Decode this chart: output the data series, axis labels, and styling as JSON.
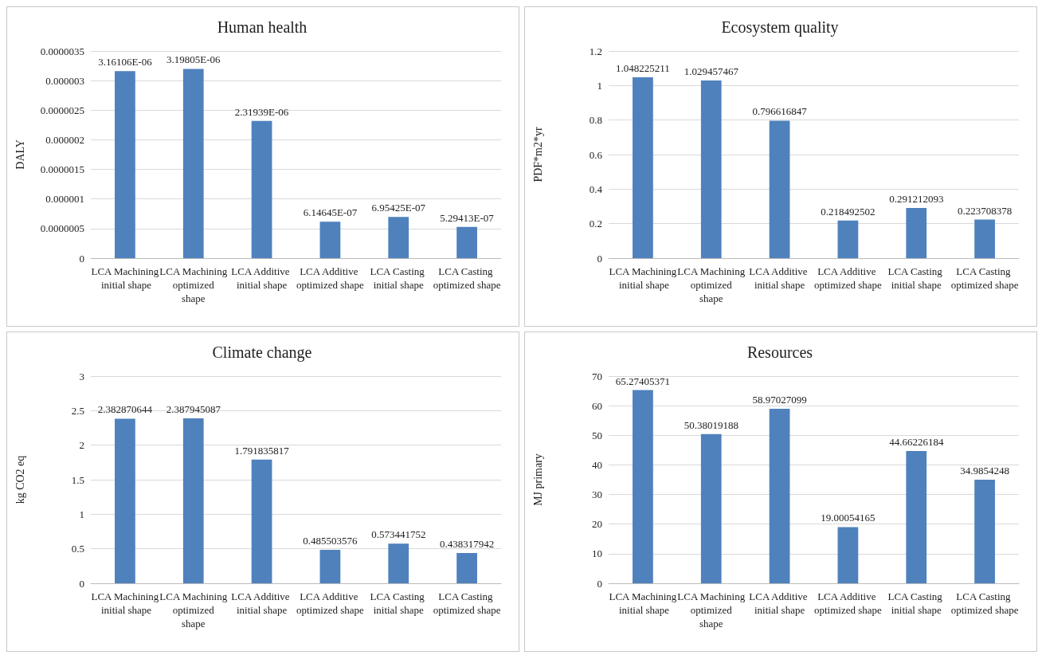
{
  "chart_data": [
    {
      "type": "bar",
      "title": "Human health",
      "ylabel": "DALY",
      "categories": [
        "LCA Machining initial shape",
        "LCA Machining optimized shape",
        "LCA Additive initial shape",
        "LCA Additive optimized shape",
        "LCA Casting initial shape",
        "LCA Casting optimized shape"
      ],
      "series": [
        {
          "color": "#4f81bd",
          "values": [
            3.16106e-06,
            3.19805e-06,
            2.31939e-06,
            6.14645e-07,
            6.95425e-07,
            5.29413e-07
          ],
          "value_labels": [
            "3.16106E-06",
            "3.19805E-06",
            "2.31939E-06",
            "6.14645E-07",
            "6.95425E-07",
            "5.29413E-07"
          ]
        }
      ],
      "ylim": [
        0,
        3.5e-06
      ],
      "yticks": [
        {
          "value": 0,
          "label": "0"
        },
        {
          "value": 5e-07,
          "label": "0.0000005"
        },
        {
          "value": 1e-06,
          "label": "0.000001"
        },
        {
          "value": 1.5e-06,
          "label": "0.0000015"
        },
        {
          "value": 2e-06,
          "label": "0.000002"
        },
        {
          "value": 2.5e-06,
          "label": "0.0000025"
        },
        {
          "value": 3e-06,
          "label": "0.000003"
        },
        {
          "value": 3.5e-06,
          "label": "0.0000035"
        }
      ],
      "grid": "y"
    },
    {
      "type": "bar",
      "title": "Ecosystem quality",
      "ylabel": "PDF*m2*yr",
      "categories": [
        "LCA Machining initial shape",
        "LCA Machining optimized shape",
        "LCA Additive initial shape",
        "LCA Additive optimized shape",
        "LCA Casting initial shape",
        "LCA Casting optimized shape"
      ],
      "series": [
        {
          "color": "#4f81bd",
          "values": [
            1.048225211,
            1.029457467,
            0.796616847,
            0.218492502,
            0.291212093,
            0.223708378
          ]
        }
      ],
      "data_labels": true,
      "ylim": [
        0,
        1.2
      ],
      "yticks": [
        0,
        0.2,
        0.4,
        0.6,
        0.8,
        1,
        1.2
      ],
      "grid": "y"
    },
    {
      "type": "bar",
      "title": "Climate change",
      "ylabel": "kg CO2 eq",
      "categories": [
        "LCA Machining initial shape",
        "LCA Machining optimized shape",
        "LCA Additive initial shape",
        "LCA Additive optimized shape",
        "LCA Casting initial shape",
        "LCA Casting optimized shape"
      ],
      "series": [
        {
          "color": "#4f81bd",
          "values": [
            2.382870644,
            2.387945087,
            1.791835817,
            0.485503576,
            0.573441752,
            0.438317942
          ]
        }
      ],
      "data_labels": true,
      "ylim": [
        0,
        3
      ],
      "yticks": [
        0,
        0.5,
        1,
        1.5,
        2,
        2.5,
        3
      ],
      "grid": "y"
    },
    {
      "type": "bar",
      "title": "Resources",
      "ylabel": "MJ primary",
      "categories": [
        "LCA Machining initial shape",
        "LCA Machining optimized shape",
        "LCA Additive initial shape",
        "LCA Additive optimized shape",
        "LCA Casting initial shape",
        "LCA Casting optimized shape"
      ],
      "series": [
        {
          "color": "#4f81bd",
          "values": [
            65.27405371,
            50.38019188,
            58.97027099,
            19.00054165,
            44.66226184,
            34.9854248
          ]
        }
      ],
      "data_labels": true,
      "ylim": [
        0,
        70
      ],
      "yticks": [
        0,
        10,
        20,
        30,
        40,
        50,
        60,
        70
      ],
      "grid": "y"
    }
  ]
}
